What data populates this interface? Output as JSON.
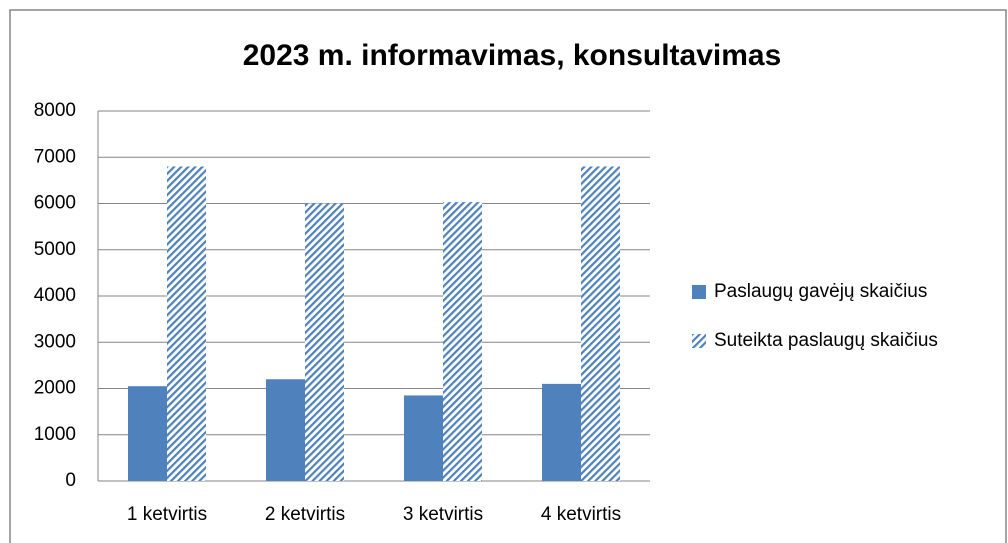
{
  "chart_data": {
    "type": "bar",
    "title": "2023 m. informavimas, konsultavimas",
    "categories": [
      "1 ketvirtis",
      "2 ketvirtis",
      "3 ketvirtis",
      "4 ketvirtis"
    ],
    "series": [
      {
        "name": "Paslaugų gavėjų skaičius",
        "color": "#4f81bd",
        "values": [
          2050,
          2200,
          1850,
          2100
        ]
      },
      {
        "name": "Suteikta paslaugų skaičius",
        "color": "#4f81bd",
        "pattern": "diagonal-stripes",
        "values": [
          6800,
          6000,
          6030,
          6800
        ]
      }
    ],
    "ylim": [
      0,
      8000
    ],
    "yticks": [
      0,
      1000,
      2000,
      3000,
      4000,
      5000,
      6000,
      7000,
      8000
    ],
    "grid": true,
    "legend": "right"
  }
}
